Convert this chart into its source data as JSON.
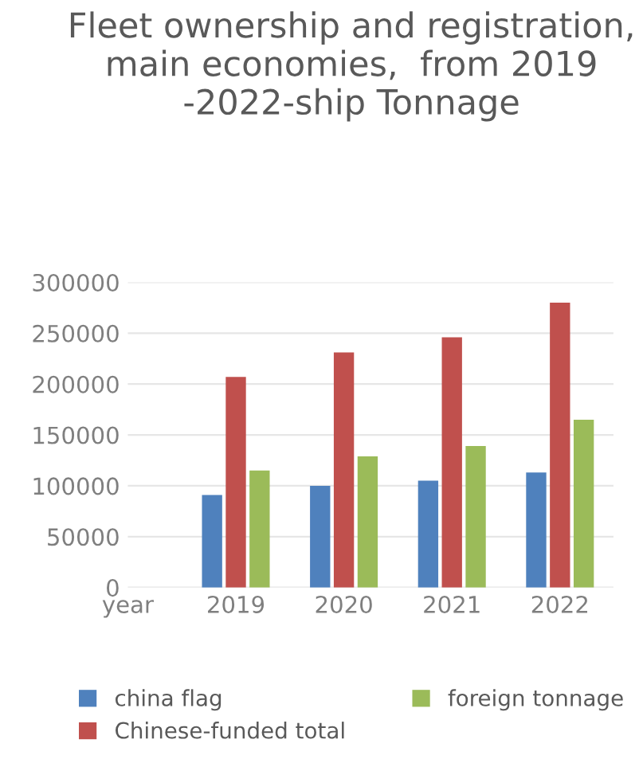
{
  "chart_data": {
    "type": "bar",
    "title": "Fleet ownership and registration, main economies,  from 2019 -2022-ship Tonnage",
    "categories": [
      "year",
      "2019",
      "2020",
      "2021",
      "2022"
    ],
    "series": [
      {
        "name": "china flag",
        "color": "#4f81bd",
        "values": [
          null,
          91000,
          100000,
          105000,
          113000
        ]
      },
      {
        "name": "Chinese-funded total",
        "color": "#c0504d",
        "values": [
          null,
          207000,
          231000,
          246000,
          280000
        ]
      },
      {
        "name": "foreign tonnage",
        "color": "#9bbb59",
        "values": [
          null,
          115000,
          129000,
          139000,
          165000
        ]
      }
    ],
    "ylim": [
      0,
      300000
    ],
    "yticks": [
      0,
      50000,
      100000,
      150000,
      200000,
      250000,
      300000
    ],
    "grid": "y",
    "legend": "bottom"
  }
}
